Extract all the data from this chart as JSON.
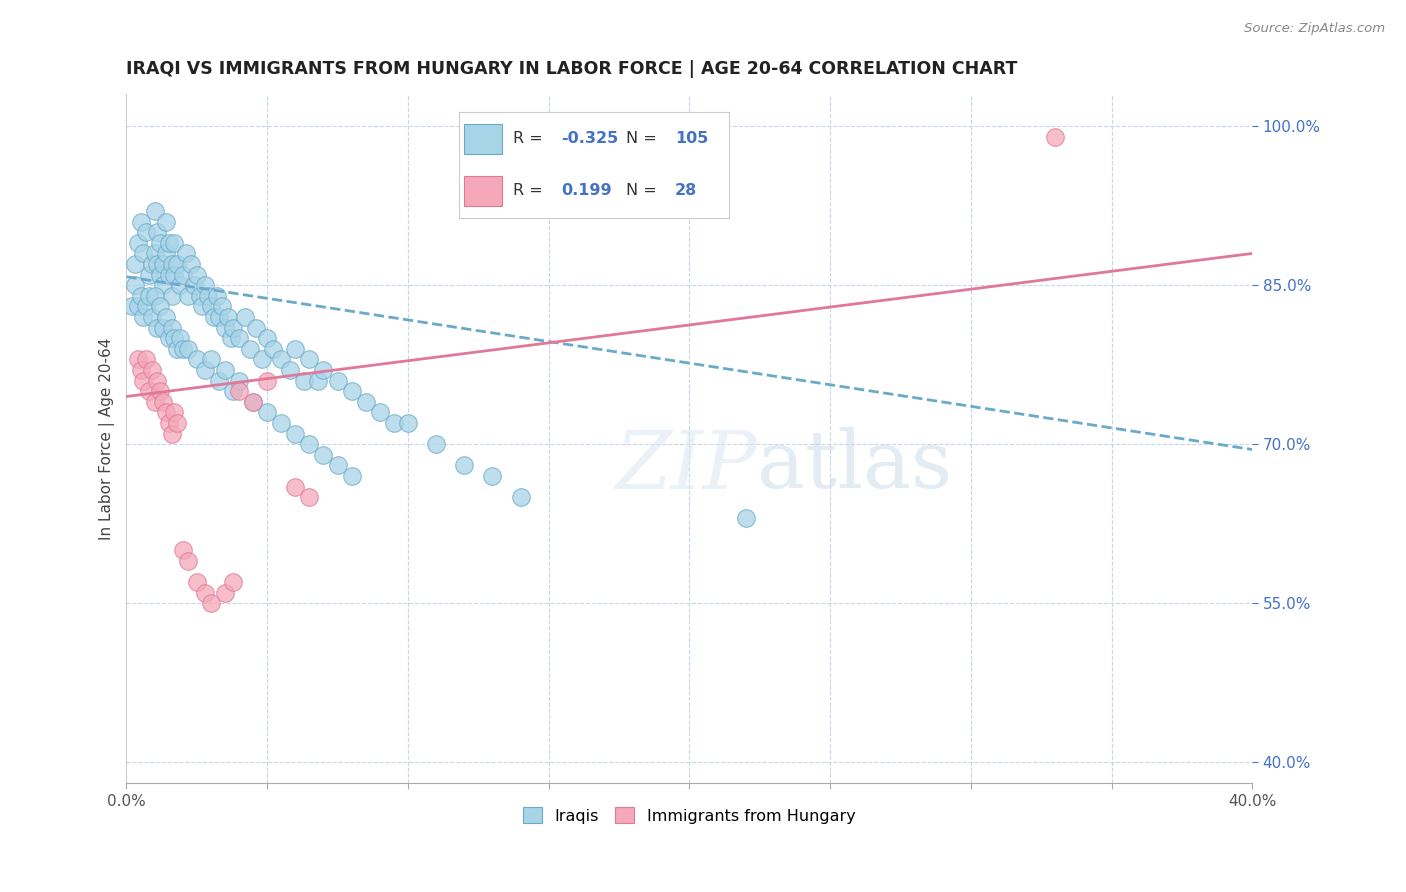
{
  "title": "IRAQI VS IMMIGRANTS FROM HUNGARY IN LABOR FORCE | AGE 20-64 CORRELATION CHART",
  "source": "Source: ZipAtlas.com",
  "ylabel": "In Labor Force | Age 20-64",
  "xlim": [
    0.0,
    0.4
  ],
  "ylim": [
    0.38,
    1.03
  ],
  "yticks_right": [
    1.0,
    0.85,
    0.7,
    0.55,
    0.4
  ],
  "ytick_right_labels": [
    "100.0%",
    "85.0%",
    "70.0%",
    "55.0%",
    "40.0%"
  ],
  "blue_color": "#a8d4e8",
  "pink_color": "#f4a8b8",
  "blue_edge": "#6aaac8",
  "pink_edge": "#e07898",
  "trend_blue_color": "#6aaac8",
  "trend_pink_color": "#e07898",
  "grid_color": "#c8d4e8",
  "value_color": "#4472c4",
  "blue_R": "-0.325",
  "blue_N": "105",
  "pink_R": "0.199",
  "pink_N": "28",
  "blue_trend_x": [
    0.0,
    0.4
  ],
  "blue_trend_y": [
    0.858,
    0.695
  ],
  "pink_trend_x": [
    0.0,
    0.4
  ],
  "pink_trend_y": [
    0.745,
    0.88
  ],
  "blue_scatter_x": [
    0.003,
    0.004,
    0.005,
    0.006,
    0.007,
    0.008,
    0.009,
    0.01,
    0.01,
    0.011,
    0.011,
    0.012,
    0.012,
    0.013,
    0.013,
    0.014,
    0.014,
    0.015,
    0.015,
    0.016,
    0.016,
    0.017,
    0.017,
    0.018,
    0.019,
    0.02,
    0.021,
    0.022,
    0.023,
    0.024,
    0.025,
    0.026,
    0.027,
    0.028,
    0.029,
    0.03,
    0.031,
    0.032,
    0.033,
    0.034,
    0.035,
    0.036,
    0.037,
    0.038,
    0.04,
    0.042,
    0.044,
    0.046,
    0.048,
    0.05,
    0.052,
    0.055,
    0.058,
    0.06,
    0.063,
    0.065,
    0.068,
    0.07,
    0.075,
    0.08,
    0.085,
    0.09,
    0.095,
    0.1,
    0.11,
    0.12,
    0.13,
    0.14,
    0.002,
    0.003,
    0.004,
    0.005,
    0.006,
    0.007,
    0.008,
    0.009,
    0.01,
    0.011,
    0.012,
    0.013,
    0.014,
    0.015,
    0.016,
    0.017,
    0.018,
    0.019,
    0.02,
    0.022,
    0.025,
    0.028,
    0.03,
    0.033,
    0.035,
    0.038,
    0.04,
    0.045,
    0.05,
    0.055,
    0.06,
    0.065,
    0.07,
    0.075,
    0.08,
    0.22
  ],
  "blue_scatter_y": [
    0.87,
    0.89,
    0.91,
    0.88,
    0.9,
    0.86,
    0.87,
    0.88,
    0.92,
    0.87,
    0.9,
    0.86,
    0.89,
    0.87,
    0.85,
    0.88,
    0.91,
    0.86,
    0.89,
    0.87,
    0.84,
    0.86,
    0.89,
    0.87,
    0.85,
    0.86,
    0.88,
    0.84,
    0.87,
    0.85,
    0.86,
    0.84,
    0.83,
    0.85,
    0.84,
    0.83,
    0.82,
    0.84,
    0.82,
    0.83,
    0.81,
    0.82,
    0.8,
    0.81,
    0.8,
    0.82,
    0.79,
    0.81,
    0.78,
    0.8,
    0.79,
    0.78,
    0.77,
    0.79,
    0.76,
    0.78,
    0.76,
    0.77,
    0.76,
    0.75,
    0.74,
    0.73,
    0.72,
    0.72,
    0.7,
    0.68,
    0.67,
    0.65,
    0.83,
    0.85,
    0.83,
    0.84,
    0.82,
    0.83,
    0.84,
    0.82,
    0.84,
    0.81,
    0.83,
    0.81,
    0.82,
    0.8,
    0.81,
    0.8,
    0.79,
    0.8,
    0.79,
    0.79,
    0.78,
    0.77,
    0.78,
    0.76,
    0.77,
    0.75,
    0.76,
    0.74,
    0.73,
    0.72,
    0.71,
    0.7,
    0.69,
    0.68,
    0.67,
    0.63
  ],
  "pink_scatter_x": [
    0.004,
    0.005,
    0.006,
    0.007,
    0.008,
    0.009,
    0.01,
    0.011,
    0.012,
    0.013,
    0.014,
    0.015,
    0.016,
    0.017,
    0.018,
    0.02,
    0.022,
    0.025,
    0.028,
    0.03,
    0.035,
    0.038,
    0.04,
    0.045,
    0.05,
    0.06,
    0.065,
    0.33
  ],
  "pink_scatter_y": [
    0.78,
    0.77,
    0.76,
    0.78,
    0.75,
    0.77,
    0.74,
    0.76,
    0.75,
    0.74,
    0.73,
    0.72,
    0.71,
    0.73,
    0.72,
    0.6,
    0.59,
    0.57,
    0.56,
    0.55,
    0.56,
    0.57,
    0.75,
    0.74,
    0.76,
    0.66,
    0.65,
    0.99
  ],
  "background_color": "#ffffff",
  "title_fontsize": 12.5,
  "axis_label_fontsize": 11
}
